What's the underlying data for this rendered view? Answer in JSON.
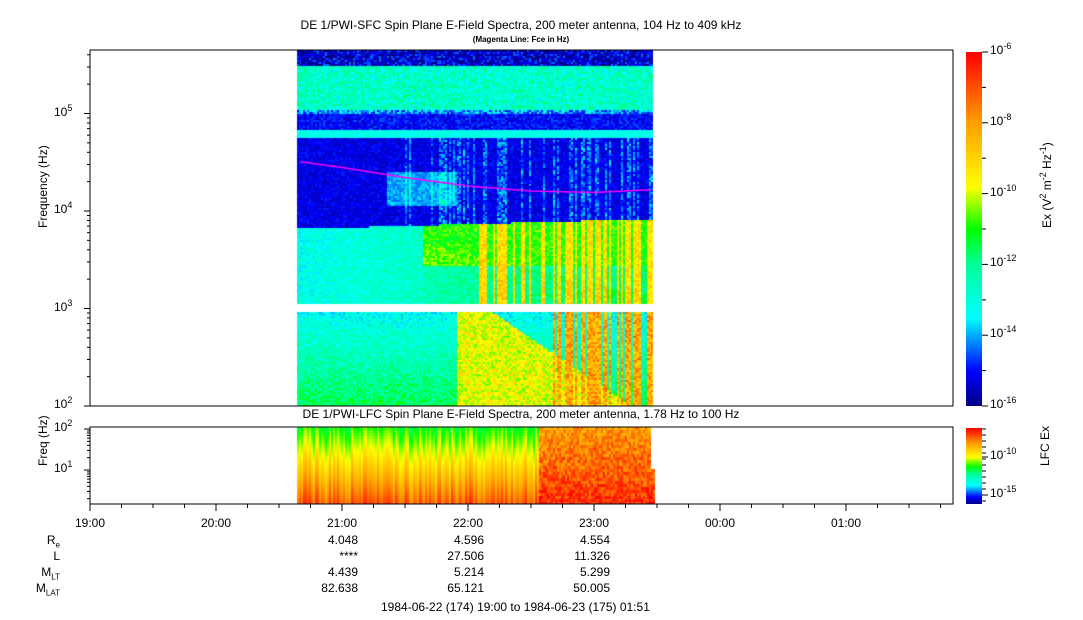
{
  "chart_data": [
    {
      "type": "heatmap",
      "title": "DE 1/PWI-SFC  Spin Plane E-Field Spectra, 200 meter antenna, 104 Hz to 409 kHz",
      "subtitle": "(Magenta Line: Fce in Hz)",
      "ylabel": "Frequency (Hz)",
      "yscale": "log",
      "ylim": [
        100,
        409000
      ],
      "yticks": [
        {
          "base": "10",
          "exp": "2"
        },
        {
          "base": "10",
          "exp": "3"
        },
        {
          "base": "10",
          "exp": "4"
        },
        {
          "base": "10",
          "exp": "5"
        }
      ],
      "data_time_range": [
        "20:39",
        "23:28"
      ],
      "data_gap_hz": [
        900,
        1050
      ],
      "colorbar": {
        "label_prefix": "Ex (V",
        "label_exp1": "2",
        "label_mid": " m",
        "label_exp2": "-2",
        "label_mid2": " Hz",
        "label_exp3": "-1",
        "label_suffix": ")",
        "range_log10": [
          -16,
          -6
        ],
        "ticks": [
          {
            "base": "10",
            "exp": "-6"
          },
          {
            "base": "10",
            "exp": "-8"
          },
          {
            "base": "10",
            "exp": "-10"
          },
          {
            "base": "10",
            "exp": "-12"
          },
          {
            "base": "10",
            "exp": "-14"
          },
          {
            "base": "10",
            "exp": "-16"
          }
        ]
      },
      "fce_line": {
        "color": "#ff00ff",
        "times_hours": [
          20.67,
          21.0,
          21.5,
          22.0,
          22.5,
          23.0,
          23.45
        ],
        "values_hz": [
          32000,
          28000,
          22000,
          18000,
          16000,
          15500,
          16500
        ]
      }
    },
    {
      "type": "heatmap",
      "title": "DE 1/PWI-LFC  Spin Plane E-Field Spectra, 200 meter antenna, 1.78 Hz to 100 Hz",
      "ylabel": "Freq (Hz)",
      "yscale": "log",
      "ylim": [
        1.78,
        100
      ],
      "yticks": [
        {
          "base": "10",
          "exp": "1"
        },
        {
          "base": "10",
          "exp": "2"
        }
      ],
      "data_time_range": [
        "20:39",
        "23:28"
      ],
      "colorbar": {
        "label": "LFC Ex",
        "ticks": [
          {
            "base": "10",
            "exp": "-10"
          },
          {
            "base": "10",
            "exp": "-15"
          }
        ]
      }
    }
  ],
  "xaxis": {
    "ticks": [
      "19:00",
      "20:00",
      "21:00",
      "22:00",
      "23:00",
      "00:00",
      "01:00"
    ],
    "range": "1984-06-22 (174) 19:00 to 1984-06-23 (175) 01:51"
  },
  "ephemeris": {
    "labels": [
      {
        "main": "R",
        "sub": "e"
      },
      {
        "main": "L",
        "sub": ""
      },
      {
        "main": "M",
        "sub": "LT"
      },
      {
        "main": "M",
        "sub": "LAT"
      }
    ],
    "columns": [
      {
        "time": "21:00",
        "values": [
          "4.048",
          "****",
          "4.439",
          "82.638"
        ]
      },
      {
        "time": "22:00",
        "values": [
          "4.596",
          "27.506",
          "5.214",
          "65.121"
        ]
      },
      {
        "time": "23:00",
        "values": [
          "4.554",
          "11.326",
          "5.299",
          "50.005"
        ]
      }
    ]
  },
  "colormap": [
    "#00007f",
    "#0000ff",
    "#00ffff",
    "#00ff99",
    "#00ff00",
    "#ffff00",
    "#ffa000",
    "#ff0000"
  ]
}
